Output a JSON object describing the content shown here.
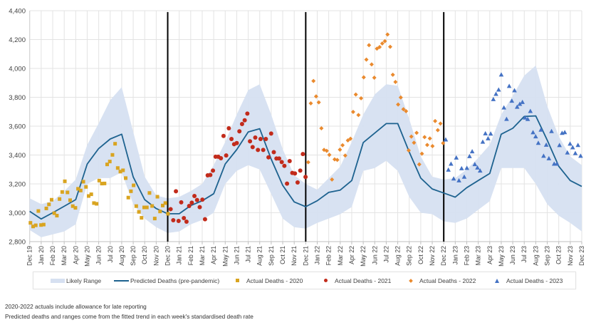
{
  "chart_data": {
    "type": "line",
    "title": "",
    "xlabel": "",
    "ylabel": "",
    "ylim": [
      2800,
      4400
    ],
    "y_ticks": [
      "2,800",
      "3,000",
      "3,200",
      "3,400",
      "3,600",
      "3,800",
      "4,000",
      "4,200",
      "4,400"
    ],
    "y_tick_values": [
      2800,
      3000,
      3200,
      3400,
      3600,
      3800,
      4000,
      4200,
      4400
    ],
    "grid": true,
    "legend_position": "bottom",
    "categories": [
      "Dec 19",
      "Jan 20",
      "Feb 20",
      "Mar 20",
      "Apr 20",
      "May 20",
      "Jun 20",
      "Jul 20",
      "Aug 20",
      "Sep 20",
      "Oct 20",
      "Nov 20",
      "Dec 20",
      "Jan 21",
      "Feb 21",
      "Mar 21",
      "Apr 21",
      "May 21",
      "Jun 21",
      "Jul 21",
      "Aug 21",
      "Sep 21",
      "Oct 21",
      "Nov 21",
      "Dec 21",
      "Jan 22",
      "Feb 22",
      "Mar 22",
      "Apr 22",
      "May 22",
      "Jun 22",
      "Jul 22",
      "Aug 22",
      "Sep 22",
      "Oct 22",
      "Nov 22",
      "Dec 22",
      "Jan 23",
      "Feb 23",
      "Mar 23",
      "Apr 23",
      "May 23",
      "Jun 23",
      "Jul 23",
      "Aug 23",
      "Sep 23",
      "Oct 23",
      "Nov 23",
      "Dec 23"
    ],
    "year_dividers": [
      "Dec 20",
      "Dec 21",
      "Dec 22"
    ],
    "likely_range": {
      "name": "Likely Range",
      "color": "#d6e0f1",
      "lower": [
        2880,
        2830,
        2850,
        2870,
        2920,
        3200,
        3240,
        3240,
        3280,
        3060,
        2960,
        2900,
        2860,
        2870,
        2920,
        2950,
        3000,
        3200,
        3290,
        3330,
        3300,
        3130,
        2960,
        2900,
        2890,
        2930,
        2960,
        2990,
        3040,
        3290,
        3310,
        3360,
        3290,
        3110,
        3000,
        2990,
        2940,
        2930,
        2960,
        3020,
        3080,
        3310,
        3310,
        3310,
        3200,
        3060,
        2980,
        2930,
        2870
      ],
      "upper": [
        3100,
        3060,
        3080,
        3150,
        3230,
        3470,
        3620,
        3780,
        3870,
        3560,
        3250,
        3120,
        3100,
        3110,
        3150,
        3200,
        3330,
        3490,
        3680,
        3850,
        3890,
        3680,
        3440,
        3260,
        3200,
        3160,
        3240,
        3320,
        3490,
        3680,
        3820,
        3890,
        3880,
        3650,
        3390,
        3250,
        3230,
        3240,
        3300,
        3380,
        3470,
        3680,
        3810,
        3950,
        4020,
        3740,
        3530,
        3390,
        3330
      ]
    },
    "predicted": {
      "name": "Predicted Deaths (pre-pandemic)",
      "color": "#1d628f",
      "values": [
        3010,
        2957,
        3000,
        3045,
        3091,
        3338,
        3445,
        3511,
        3544,
        3248,
        3091,
        3029,
        2993,
        2993,
        3050,
        3083,
        3132,
        3338,
        3437,
        3560,
        3582,
        3371,
        3190,
        3075,
        3042,
        3083,
        3141,
        3157,
        3223,
        3486,
        3552,
        3618,
        3618,
        3421,
        3240,
        3165,
        3137,
        3108,
        3174,
        3223,
        3272,
        3544,
        3585,
        3667,
        3671,
        3503,
        3322,
        3223,
        3182
      ]
    },
    "series": [
      {
        "name": "Actual Deaths - 2020",
        "color": "#d9a420",
        "marker": "square",
        "x": [
          "2020-01-03",
          "2020-01-10",
          "2020-01-17",
          "2020-01-24",
          "2020-01-31",
          "2020-02-07",
          "2020-02-14",
          "2020-02-21",
          "2020-02-28",
          "2020-03-06",
          "2020-03-13",
          "2020-03-20",
          "2020-03-27",
          "2020-04-03",
          "2020-04-10",
          "2020-04-17",
          "2020-04-24",
          "2020-05-01",
          "2020-05-08",
          "2020-05-15",
          "2020-05-22",
          "2020-05-29",
          "2020-06-05",
          "2020-06-12",
          "2020-06-19",
          "2020-06-26",
          "2020-07-03",
          "2020-07-10",
          "2020-07-17",
          "2020-07-24",
          "2020-07-31",
          "2020-08-07",
          "2020-08-14",
          "2020-08-21",
          "2020-08-28",
          "2020-09-04",
          "2020-09-11",
          "2020-09-18",
          "2020-09-25",
          "2020-10-02",
          "2020-10-09",
          "2020-10-16",
          "2020-10-23",
          "2020-10-30",
          "2020-11-06",
          "2020-11-13",
          "2020-11-20",
          "2020-11-27",
          "2020-12-04",
          "2020-12-11",
          "2020-12-18",
          "2020-12-25",
          "2021-01-01"
        ],
        "values": [
          2930,
          2905,
          2913,
          3012,
          2915,
          2918,
          3030,
          3058,
          3090,
          2997,
          2980,
          3095,
          3144,
          3218,
          3141,
          3087,
          3046,
          3034,
          3166,
          3154,
          3215,
          3179,
          3116,
          3128,
          3067,
          3062,
          3223,
          3202,
          3203,
          3335,
          3355,
          3401,
          3478,
          3310,
          3285,
          3294,
          3240,
          3105,
          3149,
          3190,
          3046,
          3006,
          2965,
          3037,
          3037,
          3137,
          3047,
          2960,
          3111,
          3009,
          3050,
          3067,
          2993
        ]
      },
      {
        "name": "Actual Deaths - 2021",
        "color": "#c22b1b",
        "marker": "circle",
        "x": [
          "2021-01-08",
          "2021-01-15",
          "2021-01-22",
          "2021-01-29",
          "2021-02-05",
          "2021-02-12",
          "2021-02-19",
          "2021-02-26",
          "2021-03-05",
          "2021-03-12",
          "2021-03-19",
          "2021-03-26",
          "2021-04-02",
          "2021-04-09",
          "2021-04-16",
          "2021-04-23",
          "2021-04-30",
          "2021-05-07",
          "2021-05-14",
          "2021-05-21",
          "2021-05-28",
          "2021-06-04",
          "2021-06-11",
          "2021-06-18",
          "2021-06-25",
          "2021-07-02",
          "2021-07-09",
          "2021-07-16",
          "2021-07-23",
          "2021-07-30",
          "2021-08-06",
          "2021-08-13",
          "2021-08-20",
          "2021-08-27",
          "2021-09-03",
          "2021-09-10",
          "2021-09-17",
          "2021-09-24",
          "2021-10-01",
          "2021-10-08",
          "2021-10-15",
          "2021-10-22",
          "2021-10-29",
          "2021-11-05",
          "2021-11-12",
          "2021-11-19",
          "2021-11-26",
          "2021-12-03",
          "2021-12-10",
          "2021-12-17",
          "2021-12-24",
          "2021-12-31"
        ],
        "values": [
          3025,
          2948,
          3149,
          2943,
          3072,
          2963,
          2938,
          3047,
          3070,
          3116,
          3088,
          3039,
          3091,
          2955,
          3259,
          3262,
          3292,
          3388,
          3388,
          3378,
          3532,
          3397,
          3585,
          3511,
          3475,
          3483,
          3564,
          3615,
          3641,
          3687,
          3495,
          3455,
          3521,
          3435,
          3511,
          3435,
          3511,
          3384,
          3549,
          3420,
          3376,
          3376,
          3351,
          3325,
          3202,
          3358,
          3276,
          3272,
          3210,
          3292,
          3407,
          3248
        ]
      },
      {
        "name": "Actual Deaths - 2022",
        "color": "#ea8a2e",
        "marker": "diamond",
        "x": [
          "2022-01-07",
          "2022-01-14",
          "2022-01-21",
          "2022-01-28",
          "2022-02-04",
          "2022-02-11",
          "2022-02-18",
          "2022-02-25",
          "2022-03-04",
          "2022-03-11",
          "2022-03-18",
          "2022-03-25",
          "2022-04-01",
          "2022-04-08",
          "2022-04-15",
          "2022-04-22",
          "2022-04-29",
          "2022-05-06",
          "2022-05-13",
          "2022-05-20",
          "2022-05-27",
          "2022-06-03",
          "2022-06-10",
          "2022-06-17",
          "2022-06-24",
          "2022-07-01",
          "2022-07-08",
          "2022-07-15",
          "2022-07-22",
          "2022-07-29",
          "2022-08-05",
          "2022-08-12",
          "2022-08-19",
          "2022-08-26",
          "2022-09-02",
          "2022-09-09",
          "2022-09-16",
          "2022-09-23",
          "2022-09-30",
          "2022-10-07",
          "2022-10-14",
          "2022-10-21",
          "2022-10-28",
          "2022-11-04",
          "2022-11-11",
          "2022-11-18",
          "2022-11-25",
          "2022-12-02",
          "2022-12-09",
          "2022-12-16",
          "2022-12-23",
          "2022-12-30"
        ],
        "values": [
          3350,
          3758,
          3913,
          3806,
          3765,
          3585,
          3436,
          3429,
          3401,
          3230,
          3370,
          3366,
          3437,
          3468,
          3396,
          3501,
          3513,
          3699,
          3819,
          3677,
          3793,
          3938,
          4061,
          4161,
          4028,
          3936,
          4137,
          4148,
          4173,
          4189,
          4235,
          4150,
          3956,
          3906,
          3750,
          3799,
          3717,
          3704,
          3432,
          3528,
          3485,
          3554,
          3335,
          3409,
          3524,
          3470,
          3515,
          3462,
          3635,
          3572,
          3618,
          3482
        ]
      },
      {
        "name": "Actual Deaths - 2023",
        "color": "#4472c4",
        "marker": "triangle",
        "x": [
          "2023-01-06",
          "2023-01-13",
          "2023-01-20",
          "2023-01-27",
          "2023-02-03",
          "2023-02-10",
          "2023-02-17",
          "2023-02-24",
          "2023-03-03",
          "2023-03-10",
          "2023-03-17",
          "2023-03-24",
          "2023-03-31",
          "2023-04-07",
          "2023-04-14",
          "2023-04-21",
          "2023-04-28",
          "2023-05-05",
          "2023-05-12",
          "2023-05-19",
          "2023-05-26",
          "2023-06-02",
          "2023-06-09",
          "2023-06-16",
          "2023-06-23",
          "2023-06-30",
          "2023-07-07",
          "2023-07-14",
          "2023-07-21",
          "2023-07-28",
          "2023-08-04",
          "2023-08-11",
          "2023-08-18",
          "2023-08-25",
          "2023-09-01",
          "2023-09-08",
          "2023-09-15",
          "2023-09-22",
          "2023-09-29",
          "2023-10-06",
          "2023-10-13",
          "2023-10-20",
          "2023-10-27",
          "2023-11-03",
          "2023-11-10",
          "2023-11-17",
          "2023-11-24",
          "2023-12-01",
          "2023-12-08",
          "2023-12-15",
          "2023-12-22",
          "2023-12-29"
        ],
        "values": [
          3506,
          3297,
          3338,
          3236,
          3381,
          3223,
          3307,
          3248,
          3309,
          3391,
          3424,
          3335,
          3312,
          3291,
          3491,
          3549,
          3514,
          3547,
          3786,
          3822,
          3852,
          3956,
          3728,
          3649,
          3877,
          3775,
          3847,
          3733,
          3753,
          3766,
          3658,
          3648,
          3704,
          3556,
          3528,
          3483,
          3574,
          3393,
          3470,
          3376,
          3564,
          3338,
          3338,
          3467,
          3552,
          3557,
          3416,
          3477,
          3452,
          3412,
          3468,
          3393
        ]
      }
    ]
  },
  "footnotes": [
    "2020-2022  actuals include allowance for late reporting",
    "Predicted deaths and ranges come from the fitted trend in each week's standardised death rate"
  ]
}
